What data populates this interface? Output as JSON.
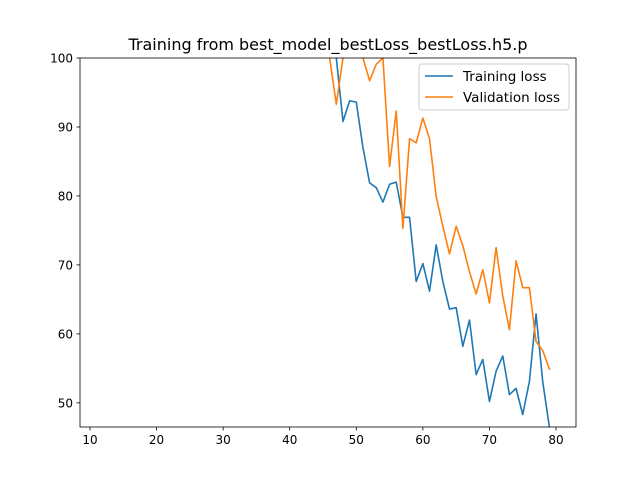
{
  "chart_data": {
    "type": "line",
    "title": "Training from best_model_bestLoss_bestLoss.h5.p",
    "xlabel": "",
    "ylabel": "",
    "xlim": [
      8.5,
      83
    ],
    "ylim": [
      46.5,
      100
    ],
    "xticks": [
      10,
      20,
      30,
      40,
      50,
      60,
      70,
      80
    ],
    "yticks": [
      50,
      60,
      70,
      80,
      90,
      100
    ],
    "grid": false,
    "legend_position": "top-right",
    "series": [
      {
        "name": "Training loss",
        "color": "#1f77b4",
        "x": [
          46,
          47,
          48,
          49,
          50,
          51,
          52,
          53,
          54,
          55,
          56,
          57,
          58,
          59,
          60,
          61,
          62,
          63,
          64,
          65,
          66,
          67,
          68,
          69,
          70,
          71,
          72,
          73,
          74,
          75,
          76,
          77,
          78,
          79
        ],
        "y": [
          108,
          100,
          90.8,
          93.8,
          93.6,
          87,
          81.9,
          81.2,
          79.1,
          81.7,
          82.0,
          76.9,
          76.9,
          67.6,
          70.2,
          66.2,
          72.9,
          67.6,
          63.6,
          63.8,
          58.2,
          62.0,
          54.1,
          56.3,
          50.2,
          54.6,
          56.8,
          51.2,
          52.1,
          48.3,
          53.1,
          62.9,
          53.1,
          46.5
        ]
      },
      {
        "name": "Validation loss",
        "color": "#ff7f0e",
        "x": [
          46,
          47,
          48,
          49,
          50,
          51,
          52,
          53,
          54,
          55,
          56,
          57,
          58,
          59,
          60,
          61,
          62,
          63,
          64,
          65,
          66,
          67,
          68,
          69,
          70,
          71,
          72,
          73,
          74,
          75,
          76,
          77,
          78,
          79
        ],
        "y": [
          100,
          93.3,
          100,
          102,
          102,
          100,
          96.7,
          99.1,
          100,
          84.3,
          92.3,
          75.3,
          88.3,
          87.7,
          91.3,
          88.3,
          79.9,
          75.6,
          71.6,
          75.6,
          72.8,
          69.0,
          65.8,
          69.3,
          64.5,
          72.5,
          65.5,
          60.6,
          70.6,
          66.7,
          66.7,
          58.9,
          57.6,
          54.9
        ]
      }
    ]
  }
}
